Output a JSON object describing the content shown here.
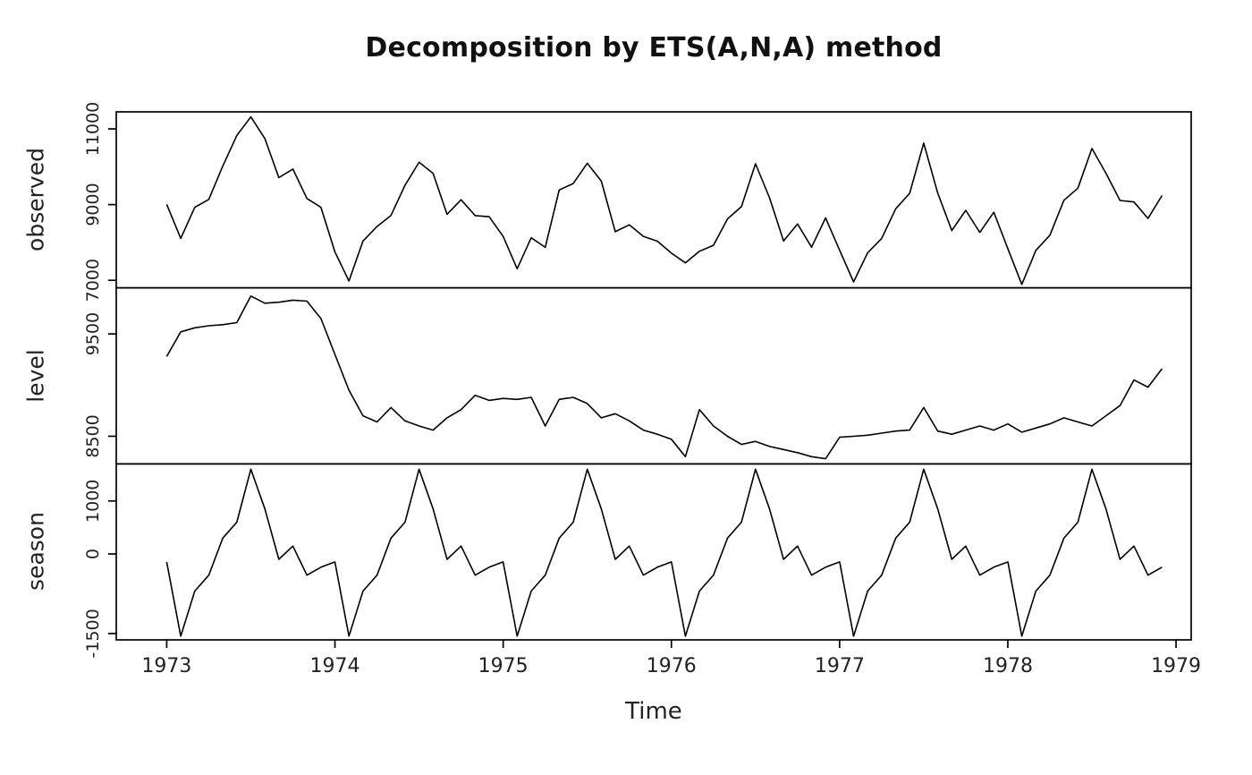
{
  "chart_data": {
    "type": "line",
    "title": "Decomposition by ETS(A,N,A) method",
    "xlabel": "Time",
    "line_color": "#000000",
    "background": "#ffffff",
    "x_start": 1973.0,
    "x_step": 0.0833333,
    "xlim": [
      1972.7,
      1979.09
    ],
    "x_ticks": [
      1973,
      1974,
      1975,
      1976,
      1977,
      1978,
      1979
    ],
    "frequency": "monthly",
    "panels": [
      {
        "name": "observed",
        "yticks": [
          7000,
          9000,
          11000
        ],
        "ylim": [
          6800,
          11450
        ],
        "values": [
          9007,
          8106,
          8928,
          9137,
          10017,
          10826,
          11317,
          10744,
          9713,
          9938,
          9161,
          8927,
          7750,
          6981,
          8038,
          8422,
          8714,
          9512,
          10120,
          9823,
          8743,
          9129,
          8710,
          8680,
          8162,
          7306,
          8124,
          7870,
          9387,
          9556,
          10093,
          9620,
          8285,
          8466,
          8160,
          8034,
          7717,
          7461,
          7767,
          7925,
          8623,
          8945,
          10078,
          9179,
          8037,
          8488,
          7874,
          8647,
          7792,
          6957,
          7726,
          8106,
          8890,
          9299,
          10625,
          9302,
          8314,
          8850,
          8265,
          8796,
          7836,
          6892,
          7791,
          8192,
          9115,
          9434,
          10484,
          9827,
          9110,
          9070,
          8633,
          9240
        ]
      },
      {
        "name": "level",
        "yticks": [
          8500,
          9500
        ],
        "ylim": [
          8230,
          9950
        ],
        "values": [
          9280,
          9520,
          9560,
          9580,
          9590,
          9610,
          9870,
          9800,
          9810,
          9830,
          9820,
          9650,
          9300,
          8950,
          8700,
          8640,
          8780,
          8650,
          8600,
          8560,
          8680,
          8760,
          8900,
          8850,
          8870,
          8860,
          8880,
          8600,
          8860,
          8880,
          8820,
          8680,
          8720,
          8650,
          8560,
          8520,
          8470,
          8300,
          8760,
          8600,
          8500,
          8420,
          8450,
          8400,
          8370,
          8340,
          8300,
          8280,
          8490,
          8500,
          8510,
          8530,
          8550,
          8560,
          8780,
          8550,
          8520,
          8560,
          8600,
          8560,
          8620,
          8540,
          8580,
          8620,
          8680,
          8640,
          8600,
          8700,
          8800,
          9050,
          8980,
          9160
        ]
      },
      {
        "name": "season",
        "yticks": [
          -1500,
          0,
          1000
        ],
        "ylim": [
          -1620,
          1700
        ],
        "values": [
          -150,
          -1550,
          -700,
          -400,
          300,
          600,
          1600,
          850,
          -100,
          150,
          -400,
          -250,
          -150,
          -1550,
          -700,
          -400,
          300,
          600,
          1600,
          850,
          -100,
          150,
          -400,
          -250,
          -150,
          -1550,
          -700,
          -400,
          300,
          600,
          1600,
          850,
          -100,
          150,
          -400,
          -250,
          -150,
          -1550,
          -700,
          -400,
          300,
          600,
          1600,
          850,
          -100,
          150,
          -400,
          -250,
          -150,
          -1550,
          -700,
          -400,
          300,
          600,
          1600,
          850,
          -100,
          150,
          -400,
          -250,
          -150,
          -1550,
          -700,
          -400,
          300,
          600,
          1600,
          850,
          -100,
          150,
          -400,
          -250
        ]
      }
    ]
  }
}
